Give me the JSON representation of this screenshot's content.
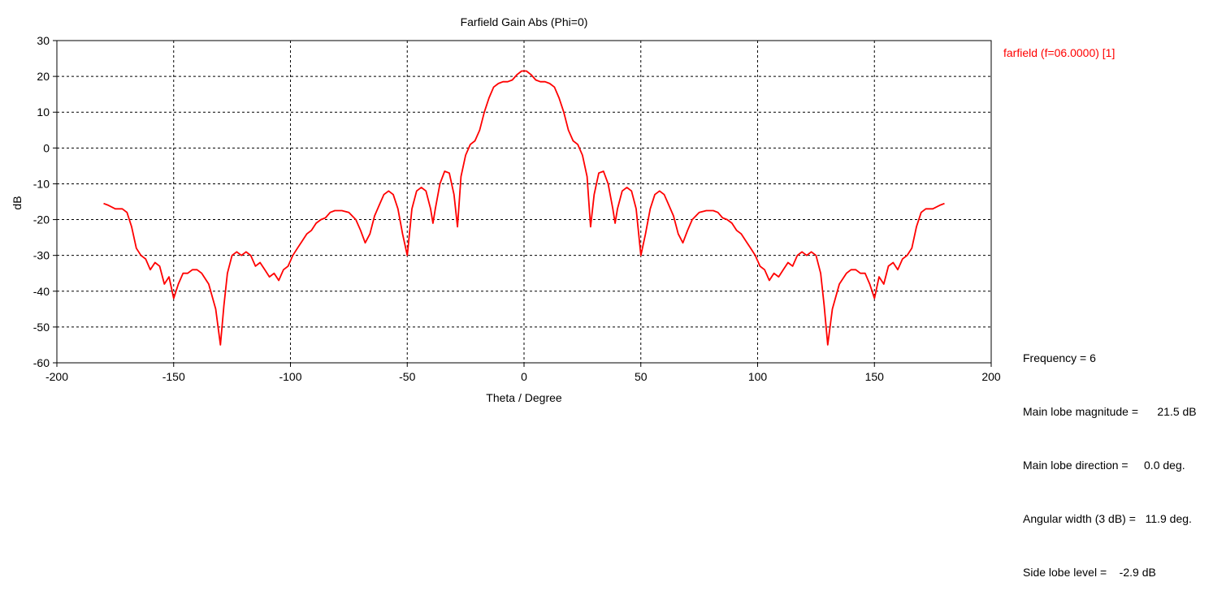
{
  "chart_data": {
    "type": "line",
    "title": "Farfield Gain Abs (Phi=0)",
    "xlabel": "Theta / Degree",
    "ylabel": "dB",
    "xlim": [
      -200,
      200
    ],
    "ylim": [
      -60,
      30
    ],
    "xticks": [
      -200,
      -150,
      -100,
      -50,
      0,
      50,
      100,
      150,
      200
    ],
    "yticks": [
      30,
      20,
      10,
      0,
      -10,
      -20,
      -30,
      -40,
      -50,
      -60
    ],
    "grid": true,
    "legend_position": "top-right",
    "series": [
      {
        "name": "farfield (f=06.0000) [1]",
        "color": "#ff0000",
        "x": [
          -180,
          -178,
          -175,
          -172,
          -170,
          -168,
          -166,
          -164,
          -162,
          -160,
          -158,
          -156,
          -154,
          -152,
          -150,
          -148,
          -146,
          -144,
          -142,
          -140,
          -138,
          -135,
          -132,
          -130,
          -128.5,
          -127,
          -125,
          -123,
          -121,
          -119,
          -117,
          -115,
          -113,
          -111,
          -109,
          -107,
          -105,
          -103,
          -101,
          -99,
          -97,
          -95,
          -93,
          -91,
          -89,
          -87,
          -85,
          -83,
          -81,
          -78,
          -75,
          -72,
          -70,
          -68,
          -66,
          -64,
          -62,
          -60,
          -58,
          -56,
          -54,
          -52,
          -50,
          -48,
          -46,
          -44,
          -42,
          -40,
          -39,
          -38,
          -36,
          -34,
          -32,
          -30,
          -28.5,
          -27,
          -25,
          -23,
          -21,
          -19,
          -17,
          -15,
          -13,
          -11,
          -9,
          -7,
          -5,
          -3,
          -1,
          0,
          1,
          3,
          5,
          7,
          9,
          11,
          13,
          15,
          17,
          19,
          21,
          23,
          25,
          27,
          28.5,
          30,
          32,
          34,
          36,
          38,
          39,
          40,
          42,
          44,
          46,
          48,
          50,
          52,
          54,
          56,
          58,
          60,
          62,
          64,
          66,
          68,
          70,
          72,
          75,
          78,
          81,
          83,
          85,
          87,
          89,
          91,
          93,
          95,
          97,
          99,
          101,
          103,
          105,
          107,
          109,
          111,
          113,
          115,
          117,
          119,
          121,
          123,
          125,
          127,
          128.5,
          130,
          132,
          135,
          138,
          140,
          142,
          144,
          146,
          148,
          150,
          152,
          154,
          156,
          158,
          160,
          162,
          164,
          166,
          168,
          170,
          172,
          175,
          178,
          180
        ],
        "y": [
          -15.5,
          -16,
          -17,
          -17,
          -18,
          -22,
          -28,
          -30,
          -31,
          -34,
          -32,
          -33,
          -38,
          -36,
          -42,
          -38,
          -35,
          -35,
          -34,
          -34,
          -35,
          -38,
          -45,
          -55,
          -44,
          -35,
          -30,
          -29,
          -30,
          -29,
          -30,
          -33,
          -32,
          -34,
          -36,
          -35,
          -37,
          -34,
          -33,
          -30,
          -28,
          -26,
          -24,
          -23,
          -21,
          -20,
          -19.5,
          -18,
          -17.5,
          -17.5,
          -18,
          -20,
          -23,
          -26.5,
          -24,
          -19,
          -16,
          -13,
          -12,
          -13,
          -17,
          -24,
          -30,
          -17,
          -12,
          -11,
          -12,
          -17,
          -21,
          -17,
          -10,
          -6.5,
          -7,
          -13,
          -22,
          -8,
          -2,
          1,
          2,
          5,
          10,
          14,
          17,
          18,
          18.5,
          18.5,
          19,
          20.5,
          21.5,
          21.5,
          21.5,
          20.5,
          19,
          18.5,
          18.5,
          18,
          17,
          14,
          10,
          5,
          2,
          1,
          -2,
          -8,
          -22,
          -13,
          -7,
          -6.5,
          -10,
          -17,
          -21,
          -17,
          -12,
          -11,
          -12,
          -17,
          -30,
          -24,
          -17,
          -13,
          -12,
          -13,
          -16,
          -19,
          -24,
          -26.5,
          -23,
          -20,
          -18,
          -17.5,
          -17.5,
          -18,
          -19.5,
          -20,
          -21,
          -23,
          -24,
          -26,
          -28,
          -30,
          -33,
          -34,
          -37,
          -35,
          -36,
          -34,
          -32,
          -33,
          -30,
          -29,
          -30,
          -29,
          -30,
          -35,
          -44,
          -55,
          -45,
          -38,
          -35,
          -34,
          -34,
          -35,
          -35,
          -38,
          -42,
          -36,
          -38,
          -33,
          -32,
          -34,
          -31,
          -30,
          -28,
          -22,
          -18,
          -17,
          -17,
          -16,
          -15.5
        ]
      }
    ]
  },
  "info": {
    "frequency": "Frequency = 6",
    "main_lobe_magnitude": "Main lobe magnitude =      21.5 dB",
    "main_lobe_direction": "Main lobe direction =     0.0 deg.",
    "angular_width": "Angular width (3 dB) =   11.9 deg.",
    "side_lobe_level": "Side lobe level =    -2.9 dB"
  }
}
